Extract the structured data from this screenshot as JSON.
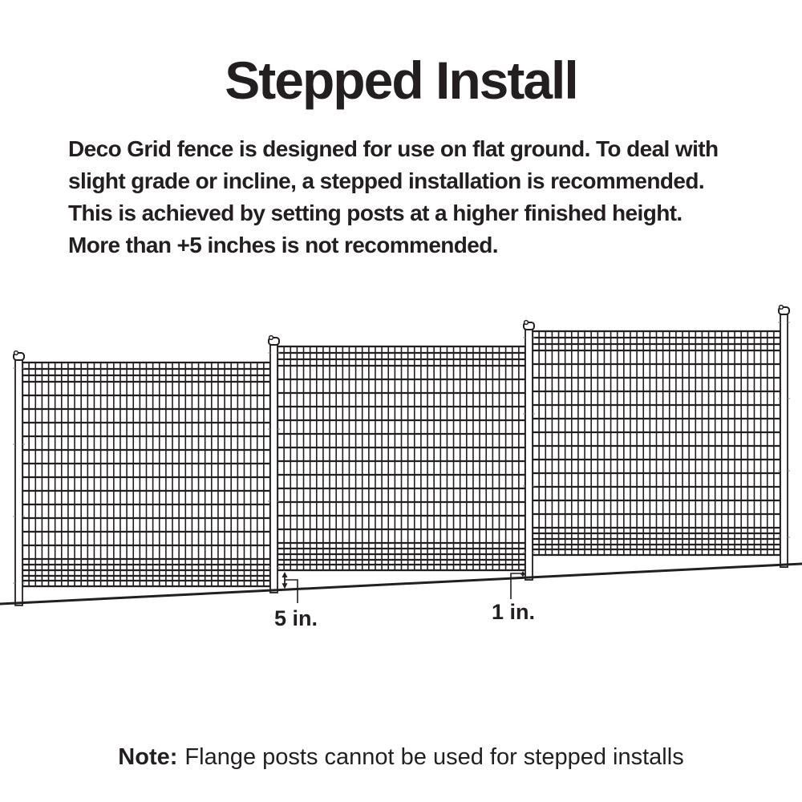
{
  "title": "Stepped Install",
  "description": {
    "lines": [
      "Deco Grid fence is designed for use on flat ground. To deal with",
      "slight grade or incline, a stepped installation is recommended.",
      "This is achieved by setting posts at a higher finished height.",
      "More than +5 inches is not recommended."
    ]
  },
  "diagram": {
    "labels": {
      "step_height": "5 in.",
      "min_gap": "1 in."
    }
  },
  "note": {
    "prefix": "Note:",
    "text": "Flange posts cannot be used for stepped installs"
  },
  "colors": {
    "ink": "#231f20",
    "background": "#ffffff"
  }
}
